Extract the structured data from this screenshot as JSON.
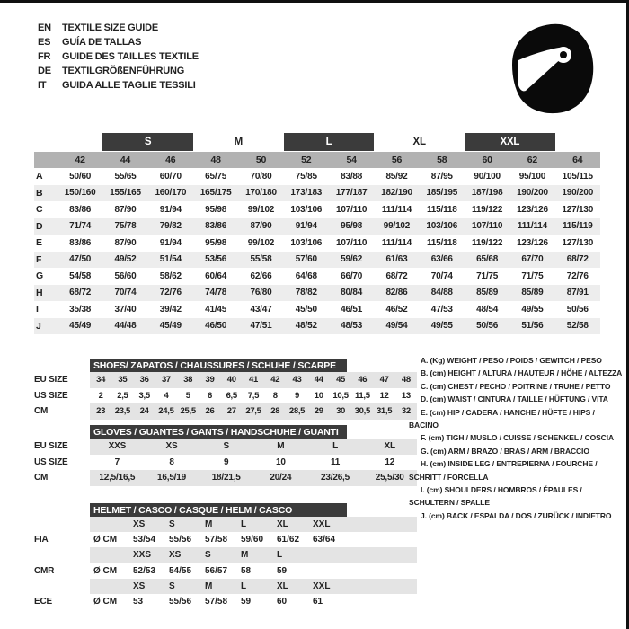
{
  "header": {
    "languages": [
      {
        "code": "EN",
        "title": "TEXTILE SIZE GUIDE"
      },
      {
        "code": "ES",
        "title": "GUÍA DE TALLAS"
      },
      {
        "code": "FR",
        "title": "GUIDE DES TAILLES TEXTILE"
      },
      {
        "code": "DE",
        "title": "TEXTILGRÖßENFÜHRUNG"
      },
      {
        "code": "IT",
        "title": "GUIDA ALLE TAGLIE TESSILI"
      }
    ],
    "logo_icon": "racing-helmet-icon"
  },
  "size_table": {
    "groups": [
      {
        "label": "S",
        "dark": true
      },
      {
        "label": "M",
        "dark": false
      },
      {
        "label": "L",
        "dark": true
      },
      {
        "label": "XL",
        "dark": false
      },
      {
        "label": "XXL",
        "dark": true
      }
    ],
    "sizes": [
      "42",
      "44",
      "46",
      "48",
      "50",
      "52",
      "54",
      "56",
      "58",
      "60",
      "62",
      "64"
    ],
    "rows": [
      {
        "label": "A",
        "values": [
          "50/60",
          "55/65",
          "60/70",
          "65/75",
          "70/80",
          "75/85",
          "83/88",
          "85/92",
          "87/95",
          "90/100",
          "95/100",
          "105/115"
        ]
      },
      {
        "label": "B",
        "values": [
          "150/160",
          "155/165",
          "160/170",
          "165/175",
          "170/180",
          "173/183",
          "177/187",
          "182/190",
          "185/195",
          "187/198",
          "190/200",
          "190/200"
        ]
      },
      {
        "label": "C",
        "values": [
          "83/86",
          "87/90",
          "91/94",
          "95/98",
          "99/102",
          "103/106",
          "107/110",
          "111/114",
          "115/118",
          "119/122",
          "123/126",
          "127/130"
        ]
      },
      {
        "label": "D",
        "values": [
          "71/74",
          "75/78",
          "79/82",
          "83/86",
          "87/90",
          "91/94",
          "95/98",
          "99/102",
          "103/106",
          "107/110",
          "111/114",
          "115/119"
        ]
      },
      {
        "label": "E",
        "values": [
          "83/86",
          "87/90",
          "91/94",
          "95/98",
          "99/102",
          "103/106",
          "107/110",
          "111/114",
          "115/118",
          "119/122",
          "123/126",
          "127/130"
        ]
      },
      {
        "label": "F",
        "values": [
          "47/50",
          "49/52",
          "51/54",
          "53/56",
          "55/58",
          "57/60",
          "59/62",
          "61/63",
          "63/66",
          "65/68",
          "67/70",
          "68/72"
        ]
      },
      {
        "label": "G",
        "values": [
          "54/58",
          "56/60",
          "58/62",
          "60/64",
          "62/66",
          "64/68",
          "66/70",
          "68/72",
          "70/74",
          "71/75",
          "71/75",
          "72/76"
        ]
      },
      {
        "label": "H",
        "values": [
          "68/72",
          "70/74",
          "72/76",
          "74/78",
          "76/80",
          "78/82",
          "80/84",
          "82/86",
          "84/88",
          "85/89",
          "85/89",
          "87/91"
        ]
      },
      {
        "label": "I",
        "values": [
          "35/38",
          "37/40",
          "39/42",
          "41/45",
          "43/47",
          "45/50",
          "46/51",
          "46/52",
          "47/53",
          "48/54",
          "49/55",
          "50/56"
        ]
      },
      {
        "label": "J",
        "values": [
          "45/49",
          "44/48",
          "45/49",
          "46/50",
          "47/51",
          "48/52",
          "48/53",
          "49/54",
          "49/55",
          "50/56",
          "51/56",
          "52/58"
        ]
      }
    ]
  },
  "shoes_table": {
    "title": "SHOES/ ZAPATOS / CHAUSSURES / SCHUHE / SCARPE",
    "rows": [
      {
        "label": "EU SIZE",
        "values": [
          "34",
          "35",
          "36",
          "37",
          "38",
          "39",
          "40",
          "41",
          "42",
          "43",
          "44",
          "45",
          "46",
          "47",
          "48"
        ]
      },
      {
        "label": "US SIZE",
        "values": [
          "2",
          "2,5",
          "3,5",
          "4",
          "5",
          "6",
          "6,5",
          "7,5",
          "8",
          "9",
          "10",
          "10,5",
          "11,5",
          "12",
          "13"
        ]
      },
      {
        "label": "CM",
        "values": [
          "23",
          "23,5",
          "24",
          "24,5",
          "25,5",
          "26",
          "27",
          "27,5",
          "28",
          "28,5",
          "29",
          "30",
          "30,5",
          "31,5",
          "32"
        ]
      }
    ]
  },
  "gloves_table": {
    "title": "GLOVES / GUANTES / GANTS / HANDSCHUHE / GUANTI",
    "rows": [
      {
        "label": "EU SIZE",
        "values": [
          "XXS",
          "XS",
          "S",
          "M",
          "L",
          "XL"
        ]
      },
      {
        "label": "US SIZE",
        "values": [
          "7",
          "8",
          "9",
          "10",
          "11",
          "12"
        ]
      },
      {
        "label": "CM",
        "values": [
          "12,5/16,5",
          "16,5/19",
          "18/21,5",
          "20/24",
          "23/26,5",
          "25,5/30"
        ]
      }
    ]
  },
  "helmet_table": {
    "title": "HELMET / CASCO / CASQUE / HELM / CASCO",
    "rows": [
      {
        "label": "",
        "diameter": "",
        "values": [
          "XS",
          "S",
          "M",
          "L",
          "XL",
          "XXL"
        ]
      },
      {
        "label": "FIA",
        "diameter": "Ø CM",
        "values": [
          "53/54",
          "55/56",
          "57/58",
          "59/60",
          "61/62",
          "63/64"
        ]
      },
      {
        "label": "",
        "diameter": "",
        "values": [
          "XXS",
          "XS",
          "S",
          "M",
          "L",
          ""
        ]
      },
      {
        "label": "CMR",
        "diameter": "Ø CM",
        "values": [
          "52/53",
          "54/55",
          "56/57",
          "58",
          "59",
          ""
        ]
      },
      {
        "label": "",
        "diameter": "",
        "values": [
          "XS",
          "S",
          "M",
          "L",
          "XL",
          "XXL"
        ]
      },
      {
        "label": "ECE",
        "diameter": "Ø CM",
        "values": [
          "53",
          "55/56",
          "57/58",
          "59",
          "60",
          "61"
        ]
      }
    ]
  },
  "legend": {
    "items": [
      "A. (Kg) WEIGHT / PESO / POIDS / GEWITCH / PESO",
      "B. (cm) HEIGHT / ALTURA / HAUTEUR / HÖHE / ALTEZZA",
      "C. (cm) CHEST / PECHO / POITRINE / TRUHE / PETTO",
      "D. (cm) WAIST / CINTURA / TAILLE / HÜFTUNG / VITA",
      "E. (cm) HIP / CADERA / HANCHE / HÜFTE / HIPS / BACINO",
      "F. (cm) TIGH / MUSLO / CUISSE / SCHENKEL / COSCIA",
      "G. (cm) ARM / BRAZO / BRAS / ARM / BRACCIO",
      "H. (cm) INSIDE LEG / ENTREPIERNA / FOURCHE / SCHRITT / FORCELLA",
      "I. (cm) SHOULDERS / HOMBROS / ÉPAULES / SCHULTERN / SPALLE",
      "J. (cm) BACK / ESPALDA / DOS / ZURÜCK / INDIETRO"
    ]
  },
  "colors": {
    "dark_bar": "#3b3b3b",
    "size_header_gray": "#b2b2b2",
    "stripe_main": "#ededed",
    "stripe_sub": "#e4e4e4",
    "text": "#222222",
    "border": "#101010"
  }
}
